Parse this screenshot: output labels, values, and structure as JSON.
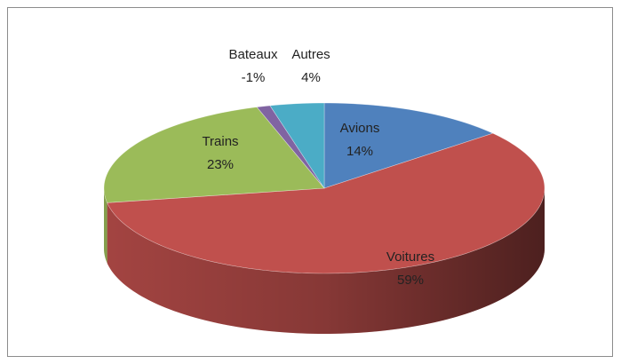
{
  "chart_data": {
    "type": "pie",
    "categories": [
      "Avions",
      "Voitures",
      "Trains",
      "Bateaux",
      "Autres"
    ],
    "values": [
      14,
      59,
      23,
      -1,
      4
    ],
    "value_labels": [
      "14%",
      "59%",
      "23%",
      "-1%",
      "4%"
    ],
    "colors": [
      "#4f81bd",
      "#c0504d",
      "#9bbb59",
      "#8064a2",
      "#4bacc6"
    ]
  }
}
